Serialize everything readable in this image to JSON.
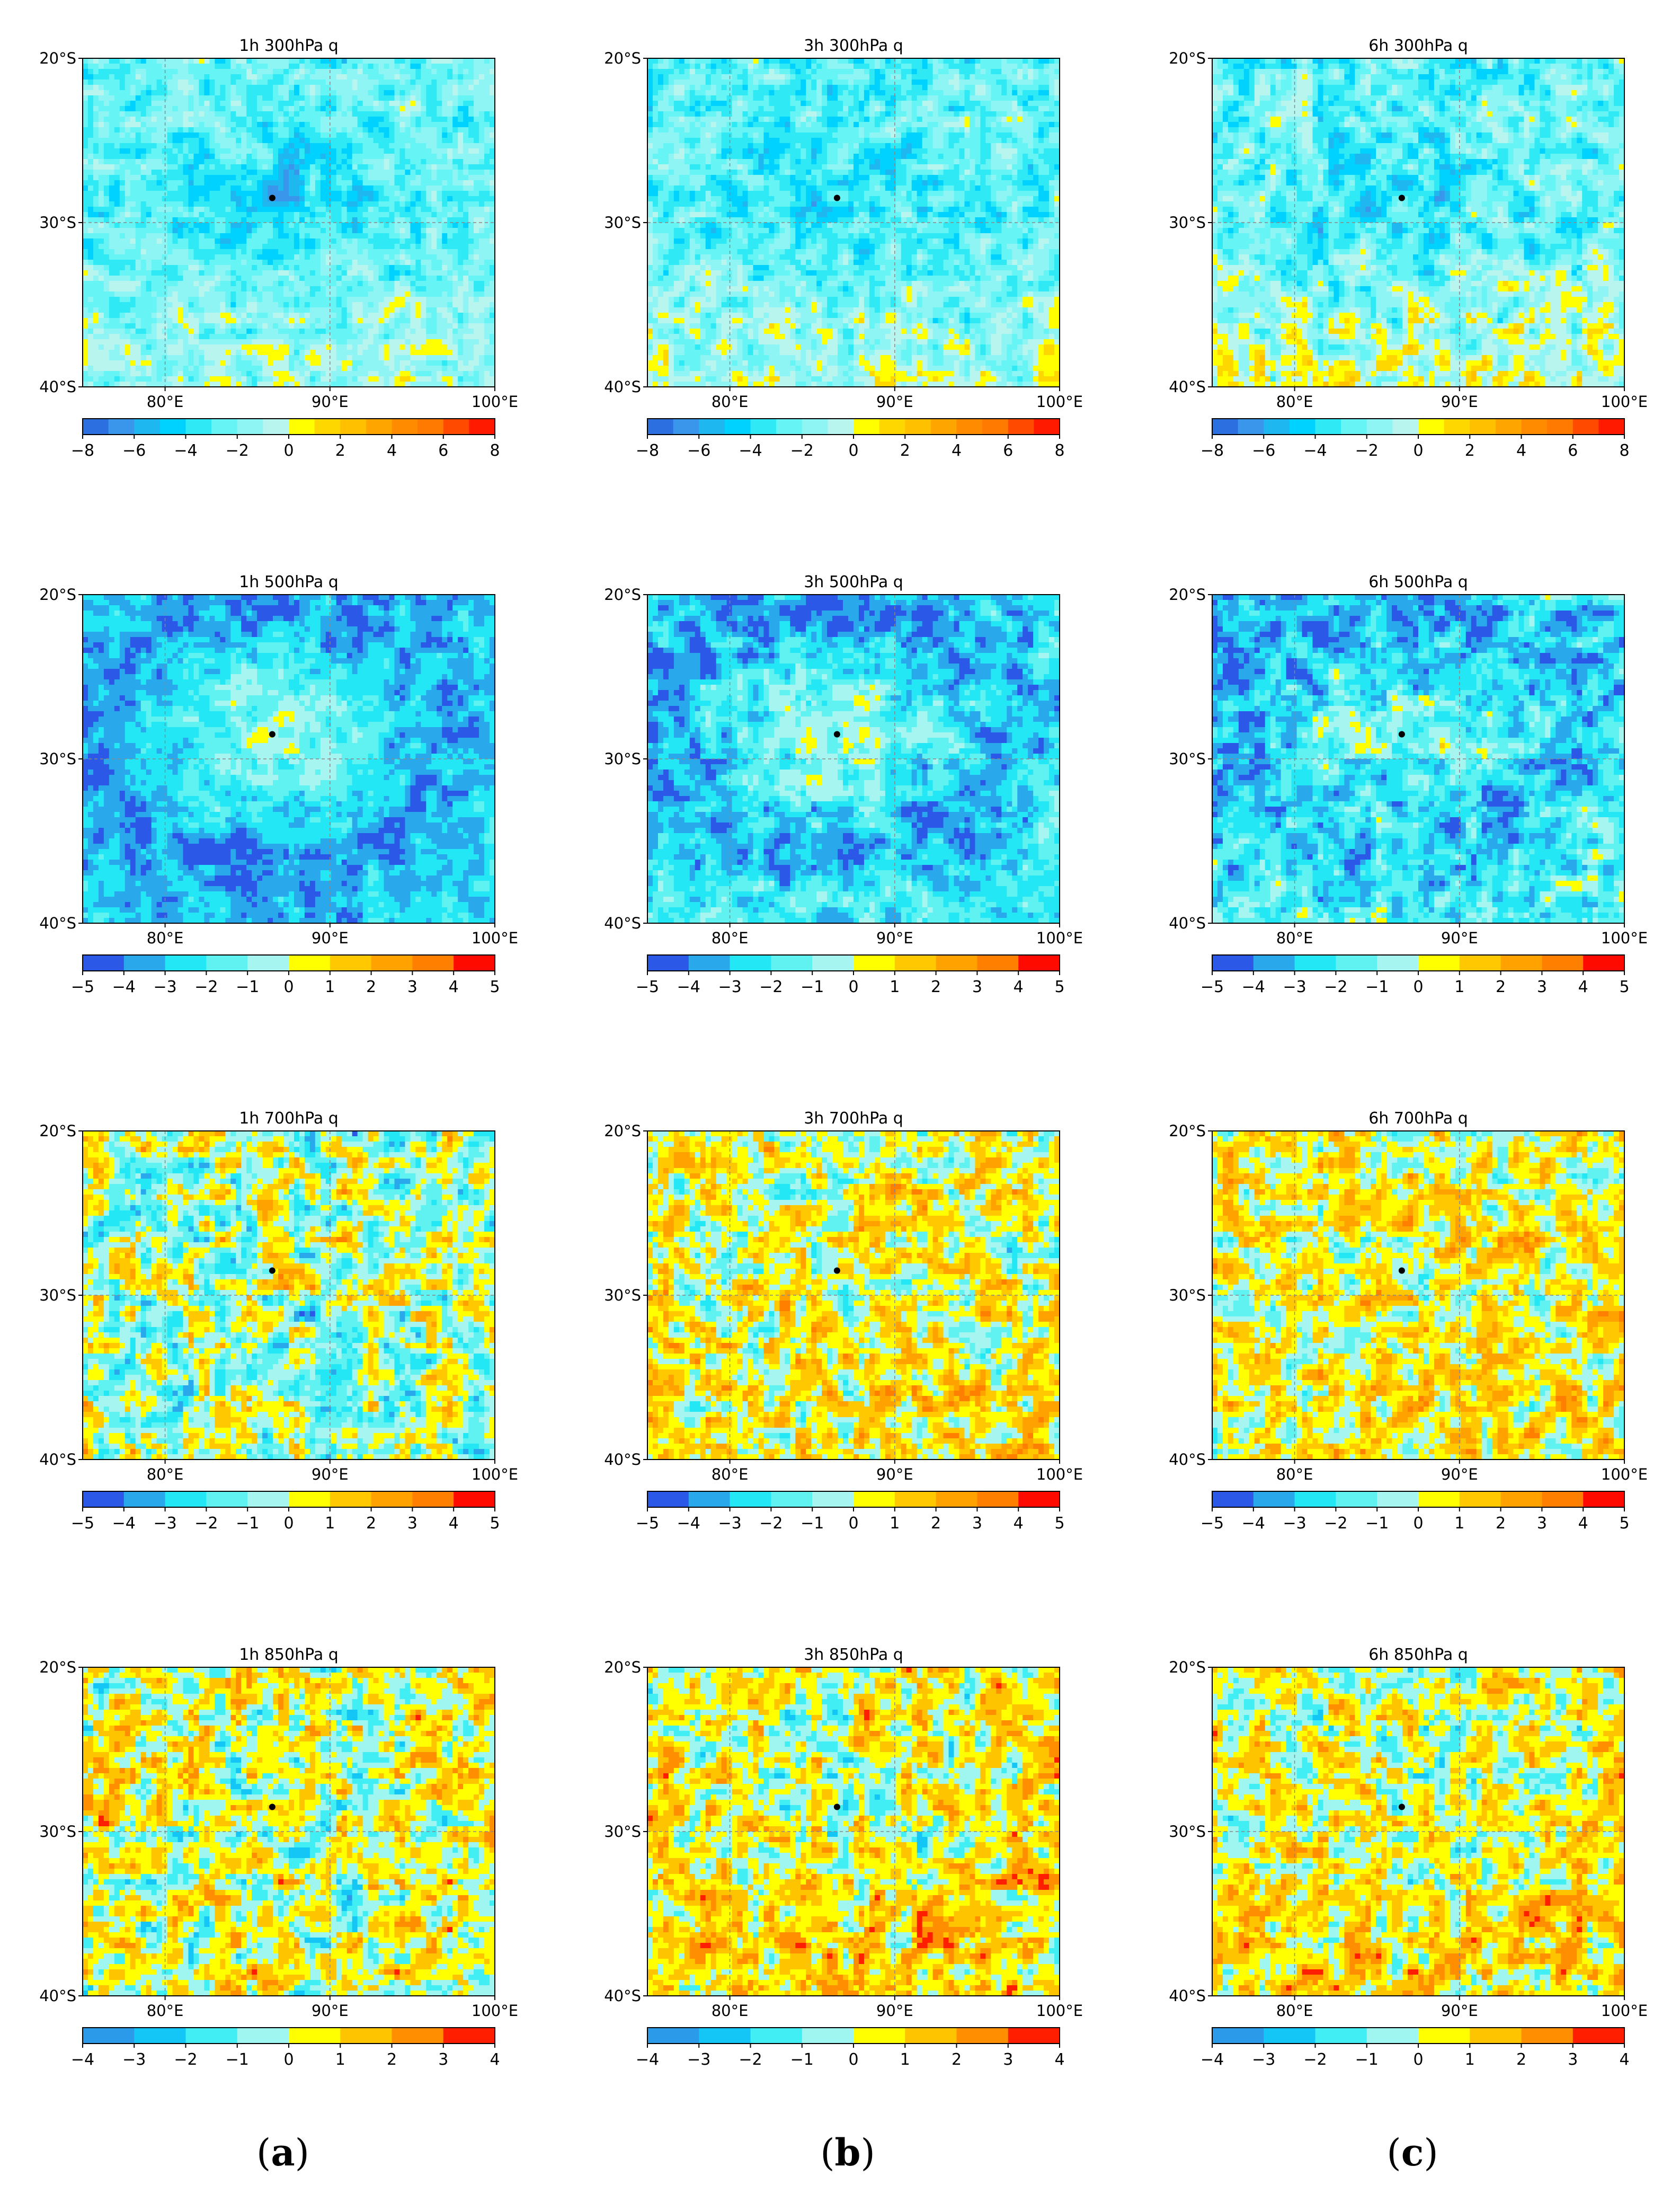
{
  "figure": {
    "column_labels": [
      "a",
      "b",
      "c"
    ],
    "lon_ticks": [
      "80°E",
      "90°E",
      "100°E"
    ],
    "lat_ticks": [
      "20°S",
      "30°S",
      "40°S"
    ]
  },
  "chart_data": [
    {
      "type": "heatmap",
      "title": "1h 300hPa q",
      "variable": "q",
      "lead": "1h",
      "level_hPa": 300,
      "lon_range": [
        75,
        100
      ],
      "lat_range": [
        -40,
        -20
      ],
      "marker": {
        "lon": 86.5,
        "lat": -28.5
      },
      "cbar": {
        "levels": [
          -8,
          -7,
          -6,
          -5,
          -4,
          -3,
          -2,
          -1,
          0,
          1,
          2,
          3,
          4,
          5,
          6,
          7,
          8
        ],
        "tick_values": [
          -8,
          -6,
          -4,
          -2,
          0,
          2,
          4,
          6,
          8
        ],
        "tick_labels": [
          "−8",
          "−6",
          "−4",
          "−2",
          "0",
          "2",
          "4",
          "6",
          "8"
        ]
      },
      "pattern": {
        "seed": 11,
        "base": -2.7,
        "core": -1.2,
        "noise": 2.4,
        "south": 1.2,
        "ring": 0.0,
        "ringAmp": 0.0,
        "threshold": 0.2,
        "se": 0.6
      }
    },
    {
      "type": "heatmap",
      "title": "3h 300hPa q",
      "variable": "q",
      "lead": "3h",
      "level_hPa": 300,
      "lon_range": [
        75,
        100
      ],
      "lat_range": [
        -40,
        -20
      ],
      "marker": {
        "lon": 86.5,
        "lat": -28.5
      },
      "cbar": {
        "levels": [
          -8,
          -7,
          -6,
          -5,
          -4,
          -3,
          -2,
          -1,
          0,
          1,
          2,
          3,
          4,
          5,
          6,
          7,
          8
        ],
        "tick_values": [
          -8,
          -6,
          -4,
          -2,
          0,
          2,
          4,
          6,
          8
        ],
        "tick_labels": [
          "−8",
          "−6",
          "−4",
          "−2",
          "0",
          "2",
          "4",
          "6",
          "8"
        ]
      },
      "pattern": {
        "seed": 23,
        "base": -2.6,
        "core": -1.0,
        "noise": 2.6,
        "south": 1.5,
        "ring": 0.0,
        "ringAmp": 0.0,
        "threshold": 0.1,
        "se": 0.4
      }
    },
    {
      "type": "heatmap",
      "title": "6h 300hPa q",
      "variable": "q",
      "lead": "6h",
      "level_hPa": 300,
      "lon_range": [
        75,
        100
      ],
      "lat_range": [
        -40,
        -20
      ],
      "marker": {
        "lon": 86.5,
        "lat": -28.5
      },
      "cbar": {
        "levels": [
          -8,
          -7,
          -6,
          -5,
          -4,
          -3,
          -2,
          -1,
          0,
          1,
          2,
          3,
          4,
          5,
          6,
          7,
          8
        ],
        "tick_values": [
          -8,
          -6,
          -4,
          -2,
          0,
          2,
          4,
          6,
          8
        ],
        "tick_labels": [
          "−8",
          "−6",
          "−4",
          "−2",
          "0",
          "2",
          "4",
          "6",
          "8"
        ]
      },
      "pattern": {
        "seed": 37,
        "base": -2.4,
        "core": -0.8,
        "noise": 3.0,
        "south": 1.8,
        "ring": 0.0,
        "ringAmp": 0.0,
        "threshold": 0.0,
        "se": 0.5
      }
    },
    {
      "type": "heatmap",
      "title": "1h 500hPa q",
      "variable": "q",
      "lead": "1h",
      "level_hPa": 500,
      "lon_range": [
        75,
        100
      ],
      "lat_range": [
        -40,
        -20
      ],
      "marker": {
        "lon": 86.5,
        "lat": -28.5
      },
      "cbar": {
        "levels": [
          -5,
          -4,
          -3,
          -2,
          -1,
          0,
          1,
          2,
          3,
          4,
          5
        ],
        "tick_values": [
          -5,
          -4,
          -3,
          -2,
          -1,
          0,
          1,
          2,
          3,
          4,
          5
        ],
        "tick_labels": [
          "−5",
          "−4",
          "−3",
          "−2",
          "−1",
          "0",
          "1",
          "2",
          "3",
          "4",
          "5"
        ]
      },
      "pattern": {
        "seed": 41,
        "base": -3.3,
        "core": 1.5,
        "noise": 1.6,
        "south": 0.0,
        "ring": 0.55,
        "ringAmp": -0.8,
        "threshold": 0.3,
        "se": 0.9
      }
    },
    {
      "type": "heatmap",
      "title": "3h 500hPa q",
      "variable": "q",
      "lead": "3h",
      "level_hPa": 500,
      "lon_range": [
        75,
        100
      ],
      "lat_range": [
        -40,
        -20
      ],
      "marker": {
        "lon": 86.5,
        "lat": -28.5
      },
      "cbar": {
        "levels": [
          -5,
          -4,
          -3,
          -2,
          -1,
          0,
          1,
          2,
          3,
          4,
          5
        ],
        "tick_values": [
          -5,
          -4,
          -3,
          -2,
          -1,
          0,
          1,
          2,
          3,
          4,
          5
        ],
        "tick_labels": [
          "−5",
          "−4",
          "−3",
          "−2",
          "−1",
          "0",
          "1",
          "2",
          "3",
          "4",
          "5"
        ]
      },
      "pattern": {
        "seed": 53,
        "base": -3.1,
        "core": 1.4,
        "noise": 2.0,
        "south": 0.6,
        "ring": 0.55,
        "ringAmp": -0.9,
        "threshold": 0.2,
        "se": 0.9
      }
    },
    {
      "type": "heatmap",
      "title": "6h 500hPa q",
      "variable": "q",
      "lead": "6h",
      "level_hPa": 500,
      "lon_range": [
        75,
        100
      ],
      "lat_range": [
        -40,
        -20
      ],
      "marker": {
        "lon": 86.5,
        "lat": -28.5
      },
      "cbar": {
        "levels": [
          -5,
          -4,
          -3,
          -2,
          -1,
          0,
          1,
          2,
          3,
          4,
          5
        ],
        "tick_values": [
          -5,
          -4,
          -3,
          -2,
          -1,
          0,
          1,
          2,
          3,
          4,
          5
        ],
        "tick_labels": [
          "−5",
          "−4",
          "−3",
          "−2",
          "−1",
          "0",
          "1",
          "2",
          "3",
          "4",
          "5"
        ]
      },
      "pattern": {
        "seed": 67,
        "base": -2.9,
        "core": 1.3,
        "noise": 2.5,
        "south": 0.9,
        "ring": 0.55,
        "ringAmp": -0.6,
        "threshold": 0.1,
        "se": 1.0
      }
    },
    {
      "type": "heatmap",
      "title": "1h 700hPa q",
      "variable": "q",
      "lead": "1h",
      "level_hPa": 700,
      "lon_range": [
        75,
        100
      ],
      "lat_range": [
        -40,
        -20
      ],
      "marker": {
        "lon": 86.5,
        "lat": -28.5
      },
      "cbar": {
        "levels": [
          -5,
          -4,
          -3,
          -2,
          -1,
          0,
          1,
          2,
          3,
          4,
          5
        ],
        "tick_values": [
          -5,
          -4,
          -3,
          -2,
          -1,
          0,
          1,
          2,
          3,
          4,
          5
        ],
        "tick_labels": [
          "−5",
          "−4",
          "−3",
          "−2",
          "−1",
          "0",
          "1",
          "2",
          "3",
          "4",
          "5"
        ]
      },
      "pattern": {
        "seed": 71,
        "base": -0.4,
        "core": 0.0,
        "noise": 3.4,
        "south": 0.0,
        "ring": 0.0,
        "ringAmp": 0.0,
        "threshold": 0.0,
        "se": 0.0
      }
    },
    {
      "type": "heatmap",
      "title": "3h 700hPa q",
      "variable": "q",
      "lead": "3h",
      "level_hPa": 700,
      "lon_range": [
        75,
        100
      ],
      "lat_range": [
        -40,
        -20
      ],
      "marker": {
        "lon": 86.5,
        "lat": -28.5
      },
      "cbar": {
        "levels": [
          -5,
          -4,
          -3,
          -2,
          -1,
          0,
          1,
          2,
          3,
          4,
          5
        ],
        "tick_values": [
          -5,
          -4,
          -3,
          -2,
          -1,
          0,
          1,
          2,
          3,
          4,
          5
        ],
        "tick_labels": [
          "−5",
          "−4",
          "−3",
          "−2",
          "−1",
          "0",
          "1",
          "2",
          "3",
          "4",
          "5"
        ]
      },
      "pattern": {
        "seed": 83,
        "base": 0.3,
        "core": 0.0,
        "noise": 3.2,
        "south": 0.4,
        "ring": 0.0,
        "ringAmp": 0.0,
        "threshold": 0.0,
        "se": 0.0
      }
    },
    {
      "type": "heatmap",
      "title": "6h 700hPa q",
      "variable": "q",
      "lead": "6h",
      "level_hPa": 700,
      "lon_range": [
        75,
        100
      ],
      "lat_range": [
        -40,
        -20
      ],
      "marker": {
        "lon": 86.5,
        "lat": -28.5
      },
      "cbar": {
        "levels": [
          -5,
          -4,
          -3,
          -2,
          -1,
          0,
          1,
          2,
          3,
          4,
          5
        ],
        "tick_values": [
          -5,
          -4,
          -3,
          -2,
          -1,
          0,
          1,
          2,
          3,
          4,
          5
        ],
        "tick_labels": [
          "−5",
          "−4",
          "−3",
          "−2",
          "−1",
          "0",
          "1",
          "2",
          "3",
          "4",
          "5"
        ]
      },
      "pattern": {
        "seed": 97,
        "base": 0.4,
        "core": 0.0,
        "noise": 3.0,
        "south": 0.4,
        "ring": 0.0,
        "ringAmp": 0.0,
        "threshold": 0.0,
        "se": 0.0
      }
    },
    {
      "type": "heatmap",
      "title": "1h 850hPa q",
      "variable": "q",
      "lead": "1h",
      "level_hPa": 850,
      "lon_range": [
        75,
        100
      ],
      "lat_range": [
        -40,
        -20
      ],
      "marker": {
        "lon": 86.5,
        "lat": -28.5
      },
      "cbar": {
        "levels": [
          -4,
          -3,
          -2,
          -1,
          0,
          1,
          2,
          3,
          4
        ],
        "tick_values": [
          -4,
          -3,
          -2,
          -1,
          0,
          1,
          2,
          3,
          4
        ],
        "tick_labels": [
          "−4",
          "−3",
          "−2",
          "−1",
          "0",
          "1",
          "2",
          "3",
          "4"
        ]
      },
      "pattern": {
        "seed": 101,
        "base": 0.2,
        "core": -0.3,
        "noise": 2.8,
        "south": 0.0,
        "ring": 0.0,
        "ringAmp": 0.0,
        "threshold": 0.0,
        "se": 0.8
      }
    },
    {
      "type": "heatmap",
      "title": "3h 850hPa q",
      "variable": "q",
      "lead": "3h",
      "level_hPa": 850,
      "lon_range": [
        75,
        100
      ],
      "lat_range": [
        -40,
        -20
      ],
      "marker": {
        "lon": 86.5,
        "lat": -28.5
      },
      "cbar": {
        "levels": [
          -4,
          -3,
          -2,
          -1,
          0,
          1,
          2,
          3,
          4
        ],
        "tick_values": [
          -4,
          -3,
          -2,
          -1,
          0,
          1,
          2,
          3,
          4
        ],
        "tick_labels": [
          "−4",
          "−3",
          "−2",
          "−1",
          "0",
          "1",
          "2",
          "3",
          "4"
        ]
      },
      "pattern": {
        "seed": 113,
        "base": 0.4,
        "core": -0.2,
        "noise": 2.7,
        "south": 0.6,
        "ring": 0.0,
        "ringAmp": 0.0,
        "threshold": 0.0,
        "se": 0.8
      }
    },
    {
      "type": "heatmap",
      "title": "6h 850hPa q",
      "variable": "q",
      "lead": "6h",
      "level_hPa": 850,
      "lon_range": [
        75,
        100
      ],
      "lat_range": [
        -40,
        -20
      ],
      "marker": {
        "lon": 86.5,
        "lat": -28.5
      },
      "cbar": {
        "levels": [
          -4,
          -3,
          -2,
          -1,
          0,
          1,
          2,
          3,
          4
        ],
        "tick_values": [
          -4,
          -3,
          -2,
          -1,
          0,
          1,
          2,
          3,
          4
        ],
        "tick_labels": [
          "−4",
          "−3",
          "−2",
          "−1",
          "0",
          "1",
          "2",
          "3",
          "4"
        ]
      },
      "pattern": {
        "seed": 127,
        "base": 0.3,
        "core": -0.2,
        "noise": 2.6,
        "south": 0.5,
        "ring": 0.0,
        "ringAmp": 0.0,
        "threshold": 0.0,
        "se": 0.7
      }
    }
  ]
}
